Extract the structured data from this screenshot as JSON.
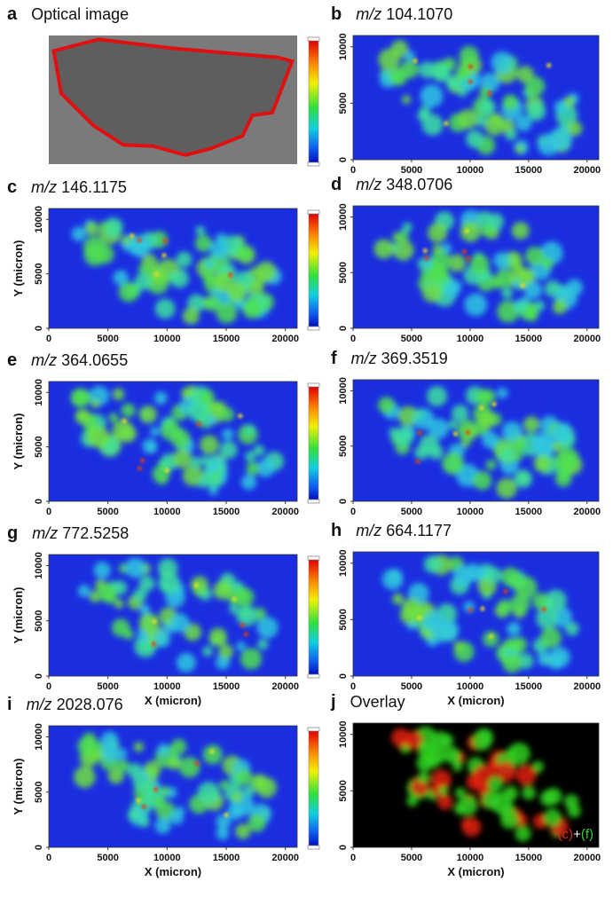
{
  "panels": [
    {
      "letter": "a",
      "title": "Optical image"
    },
    {
      "letter": "b",
      "title_italic": "m/z",
      "title": "104.1070",
      "xlim": [
        0,
        21000
      ],
      "ylim": [
        0,
        11000
      ],
      "xticks": [
        0,
        5000,
        10000,
        15000,
        20000
      ],
      "yticks": [
        0,
        5000,
        10000
      ]
    },
    {
      "letter": "c",
      "title_italic": "m/z",
      "title": "146.1175",
      "xlim": [
        0,
        21000
      ],
      "ylim": [
        0,
        11000
      ],
      "xticks": [
        0,
        5000,
        10000,
        15000,
        20000
      ],
      "yticks": [
        0,
        5000,
        10000
      ],
      "ylabel": "Y (micron)"
    },
    {
      "letter": "d",
      "title_italic": "m/z",
      "title": "348.0706",
      "xlim": [
        0,
        21000
      ],
      "ylim": [
        0,
        11000
      ],
      "xticks": [
        0,
        5000,
        10000,
        15000,
        20000
      ],
      "yticks": [
        0,
        5000,
        10000
      ]
    },
    {
      "letter": "e",
      "title_italic": "m/z",
      "title": "364.0655",
      "xlim": [
        0,
        21000
      ],
      "ylim": [
        0,
        11000
      ],
      "xticks": [
        0,
        5000,
        10000,
        15000,
        20000
      ],
      "yticks": [
        0,
        5000,
        10000
      ],
      "ylabel": "Y (micron)"
    },
    {
      "letter": "f",
      "title_italic": "m/z",
      "title": "369.3519",
      "xlim": [
        0,
        21000
      ],
      "ylim": [
        0,
        11000
      ],
      "xticks": [
        0,
        5000,
        10000,
        15000,
        20000
      ],
      "yticks": [
        0,
        5000,
        10000
      ]
    },
    {
      "letter": "g",
      "title_italic": "m/z",
      "title": "772.5258",
      "xlim": [
        0,
        21000
      ],
      "ylim": [
        0,
        11000
      ],
      "xticks": [
        0,
        5000,
        10000,
        15000,
        20000
      ],
      "yticks": [
        0,
        5000,
        10000
      ],
      "ylabel": "Y (micron)",
      "xlabel": "X (micron)"
    },
    {
      "letter": "h",
      "title_italic": "m/z",
      "title": "664.1177",
      "xlim": [
        0,
        21000
      ],
      "ylim": [
        0,
        11000
      ],
      "xticks": [
        0,
        5000,
        10000,
        15000,
        20000
      ],
      "yticks": [
        0,
        5000,
        10000
      ],
      "xlabel": "X (micron)"
    },
    {
      "letter": "i",
      "title_italic": "m/z",
      "title": "2028.076",
      "xlim": [
        0,
        21000
      ],
      "ylim": [
        0,
        11000
      ],
      "xticks": [
        0,
        5000,
        10000,
        15000,
        20000
      ],
      "yticks": [
        0,
        5000,
        10000
      ],
      "ylabel": "Y (micron)",
      "xlabel": "X (micron)"
    },
    {
      "letter": "j",
      "title": "Overlay",
      "xlim": [
        0,
        21000
      ],
      "ylim": [
        0,
        11000
      ],
      "xticks": [
        0,
        5000,
        10000,
        15000,
        20000
      ],
      "yticks": [
        0,
        5000,
        10000
      ],
      "xlabel": "X (micron)",
      "legend": [
        "(c)",
        "+",
        "(f)"
      ]
    }
  ]
}
